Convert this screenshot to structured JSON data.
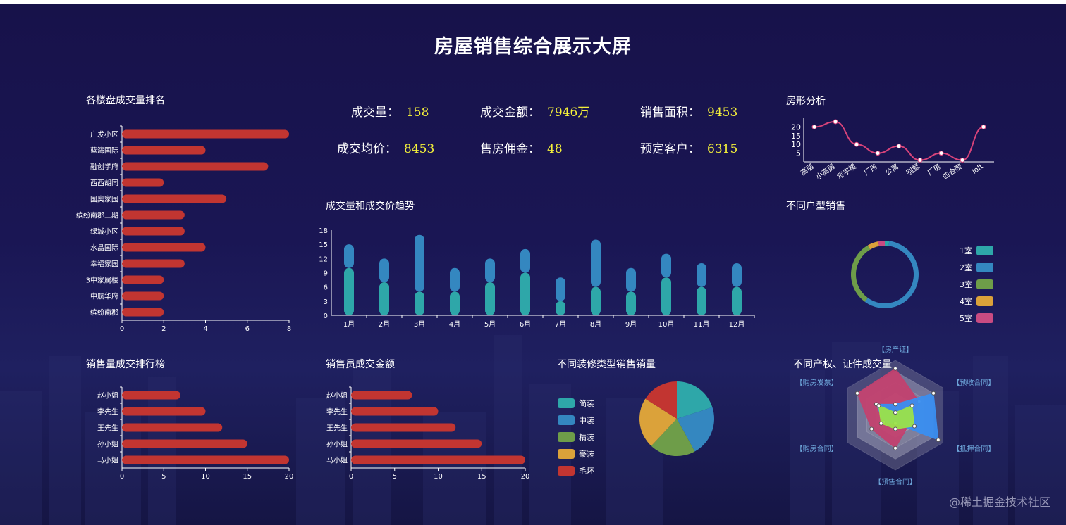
{
  "page_title": "房屋销售综合展示大屏",
  "watermark": "@稀土掘金技术社区",
  "colors": {
    "bar_red": "#c23531",
    "teal": "#2ea7a9",
    "blue": "#3487c0",
    "green": "#6e9d49",
    "orange": "#dba23a",
    "pink": "#c94b82",
    "accent": "#f4f03a"
  },
  "stats": [
    {
      "label": "成交量：",
      "value": "158"
    },
    {
      "label": "成交金额：",
      "value": "7946万"
    },
    {
      "label": "销售面积：",
      "value": "9453"
    },
    {
      "label": "成交均价：",
      "value": "8453"
    },
    {
      "label": "售房佣金：",
      "value": "48"
    },
    {
      "label": "预定客户：",
      "value": "6315"
    }
  ],
  "chart_data": [
    {
      "id": "ranking",
      "type": "bar",
      "orientation": "horizontal",
      "title": "各楼盘成交量排名",
      "categories": [
        "广发小区",
        "蓝湾国际",
        "融创学府",
        "西西胡同",
        "国奥家园",
        "缤纷南郡二期",
        "绿城小区",
        "水晶国际",
        "幸福家园",
        "3中家属楼",
        "中航华府",
        "缤纷南郡"
      ],
      "values": [
        8,
        4,
        7,
        2,
        5,
        3,
        3,
        4,
        3,
        2,
        2,
        2
      ],
      "xlim": [
        0,
        8
      ],
      "ticks": [
        "0",
        "2",
        "4",
        "6",
        "8"
      ]
    },
    {
      "id": "house_type",
      "type": "line",
      "title": "房形分析",
      "categories": [
        "高层",
        "小高层",
        "写字楼",
        "厂房",
        "公寓",
        "别墅",
        "厂房",
        "四合院",
        "loft"
      ],
      "values": [
        20,
        23,
        10,
        5,
        9,
        1,
        5,
        1,
        20
      ],
      "ylim": [
        0,
        25
      ],
      "ticks": [
        "5",
        "10",
        "15",
        "20"
      ]
    },
    {
      "id": "trend",
      "type": "bar",
      "stacked": true,
      "title": "成交量和成交价趋势",
      "categories": [
        "1月",
        "2月",
        "3月",
        "4月",
        "5月",
        "6月",
        "7月",
        "8月",
        "9月",
        "10月",
        "11月",
        "12月"
      ],
      "series": [
        {
          "values": [
            10,
            7,
            5,
            5,
            7,
            9,
            3,
            6,
            5,
            8,
            6,
            6
          ]
        },
        {
          "values": [
            5,
            5,
            12,
            5,
            5,
            5,
            5,
            10,
            5,
            5,
            5,
            5
          ]
        }
      ],
      "ylim": [
        0,
        18
      ],
      "ticks": [
        "0",
        "3",
        "6",
        "9",
        "12",
        "15",
        "18"
      ]
    },
    {
      "id": "room_type",
      "type": "pie",
      "donut": true,
      "title": "不同户型销售",
      "categories": [
        "1室",
        "2室",
        "3室",
        "4室",
        "5室"
      ],
      "values": [
        2,
        55,
        30,
        5,
        3
      ]
    },
    {
      "id": "sales_rank",
      "type": "bar",
      "orientation": "horizontal",
      "title": "销售量成交排行榜",
      "categories": [
        "赵小姐",
        "李先生",
        "王先生",
        "孙小姐",
        "马小姐"
      ],
      "values": [
        7,
        10,
        12,
        15,
        20
      ],
      "xlim": [
        0,
        20
      ],
      "ticks": [
        "0",
        "5",
        "10",
        "15",
        "20"
      ]
    },
    {
      "id": "sales_amount",
      "type": "bar",
      "orientation": "horizontal",
      "title": "销售员成交金额",
      "categories": [
        "赵小姐",
        "李先生",
        "王先生",
        "孙小姐",
        "马小姐"
      ],
      "values": [
        7,
        10,
        12,
        15,
        20
      ],
      "xlim": [
        0,
        20
      ],
      "ticks": [
        "0",
        "5",
        "10",
        "15",
        "20"
      ]
    },
    {
      "id": "decoration",
      "type": "pie",
      "title": "不同装修类型销售销量",
      "categories": [
        "简装",
        "中装",
        "精装",
        "豪装",
        "毛坯"
      ],
      "values": [
        20,
        22,
        20,
        22,
        16
      ]
    },
    {
      "id": "certificate",
      "type": "radar",
      "title": "不同产权、证件成交量",
      "indicators": [
        "【房产证】",
        "【预收合同】",
        "【抵押合同】",
        "【预售合同】",
        "【购房合同】",
        "【购房发票】"
      ],
      "series": [
        {
          "color": "pink",
          "values": [
            0.85,
            0.5,
            0.3,
            0.6,
            0.5,
            0.8
          ]
        },
        {
          "color": "blue",
          "values": [
            0.2,
            0.8,
            0.9,
            0.15,
            0.25,
            0.4
          ]
        },
        {
          "color": "green",
          "values": [
            0.05,
            0.35,
            0.4,
            0.25,
            0.3,
            0.35
          ]
        }
      ]
    }
  ]
}
